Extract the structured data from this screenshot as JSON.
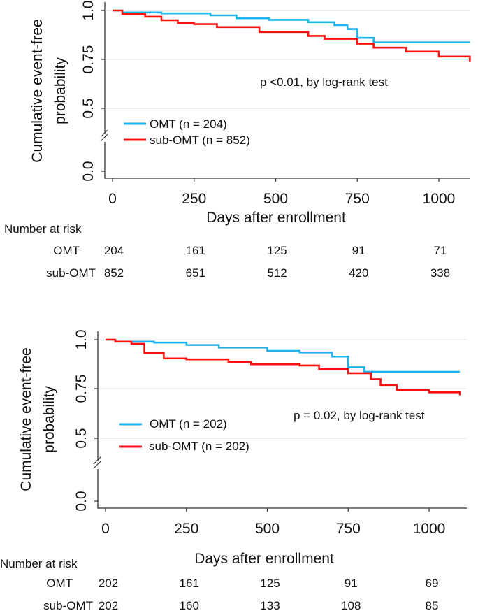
{
  "chart_data": [
    {
      "type": "line",
      "subtype": "kaplan-meier",
      "ylabel": [
        "Cumulative event-free",
        "probability"
      ],
      "xlabel": "Days after enrollment",
      "xticks": [
        0,
        250,
        500,
        750,
        1000
      ],
      "yticks": [
        "0.0",
        "0.5",
        "0.75",
        "1.0"
      ],
      "ylim": [
        0,
        1
      ],
      "grid": true,
      "annotation": "p <0.01, by log-rank test",
      "legend": [
        "OMT (n = 204)",
        "sub-OMT (n = 852)"
      ],
      "legend_position": "bottom-left",
      "series": [
        {
          "name": "OMT",
          "color": "#1fb4ec",
          "points": [
            [
              0,
              1
            ],
            [
              30,
              0.99
            ],
            [
              150,
              0.985
            ],
            [
              300,
              0.975
            ],
            [
              380,
              0.96
            ],
            [
              480,
              0.952
            ],
            [
              600,
              0.94
            ],
            [
              680,
              0.925
            ],
            [
              720,
              0.905
            ],
            [
              750,
              0.86
            ],
            [
              800,
              0.837
            ],
            [
              1095,
              0.837
            ]
          ]
        },
        {
          "name": "sub-OMT",
          "color": "#ff1010",
          "points": [
            [
              0,
              1
            ],
            [
              30,
              0.983
            ],
            [
              100,
              0.968
            ],
            [
              150,
              0.95
            ],
            [
              200,
              0.935
            ],
            [
              250,
              0.93
            ],
            [
              320,
              0.915
            ],
            [
              450,
              0.89
            ],
            [
              600,
              0.87
            ],
            [
              650,
              0.855
            ],
            [
              750,
              0.83
            ],
            [
              800,
              0.81
            ],
            [
              900,
              0.79
            ],
            [
              1000,
              0.765
            ],
            [
              1095,
              0.74
            ]
          ]
        }
      ],
      "risk_table": {
        "title": "Number at risk",
        "rows": [
          {
            "label": "OMT",
            "values": [
              204,
              161,
              125,
              91,
              71
            ]
          },
          {
            "label": "sub-OMT",
            "values": [
              852,
              651,
              512,
              420,
              338
            ]
          }
        ]
      }
    },
    {
      "type": "line",
      "subtype": "kaplan-meier",
      "ylabel": [
        "Cumulative event-free",
        "probability"
      ],
      "xlabel": "Days after enrollment",
      "xticks": [
        0,
        250,
        500,
        750,
        1000
      ],
      "yticks": [
        "0.0",
        "0.5",
        "0.75",
        "1.0"
      ],
      "ylim": [
        0,
        1
      ],
      "grid": true,
      "annotation": "p = 0.02, by log-rank test",
      "legend": [
        "OMT (n = 202)",
        "sub-OMT (n = 202)"
      ],
      "legend_position": "bottom-left",
      "series": [
        {
          "name": "OMT",
          "color": "#1fb4ec",
          "points": [
            [
              0,
              1
            ],
            [
              30,
              0.99
            ],
            [
              150,
              0.985
            ],
            [
              250,
              0.973
            ],
            [
              350,
              0.96
            ],
            [
              500,
              0.943
            ],
            [
              600,
              0.935
            ],
            [
              700,
              0.914
            ],
            [
              750,
              0.86
            ],
            [
              800,
              0.837
            ],
            [
              1095,
              0.837
            ]
          ]
        },
        {
          "name": "sub-OMT",
          "color": "#ff1010",
          "points": [
            [
              0,
              1
            ],
            [
              30,
              0.99
            ],
            [
              80,
              0.979
            ],
            [
              120,
              0.932
            ],
            [
              180,
              0.905
            ],
            [
              250,
              0.9
            ],
            [
              380,
              0.887
            ],
            [
              450,
              0.875
            ],
            [
              600,
              0.869
            ],
            [
              660,
              0.85
            ],
            [
              750,
              0.83
            ],
            [
              820,
              0.8
            ],
            [
              850,
              0.77
            ],
            [
              900,
              0.745
            ],
            [
              1000,
              0.733
            ],
            [
              1095,
              0.718
            ]
          ]
        }
      ],
      "risk_table": {
        "title": "Number at risk",
        "rows": [
          {
            "label": "OMT",
            "values": [
              202,
              161,
              125,
              91,
              69
            ]
          },
          {
            "label": "sub-OMT",
            "values": [
              202,
              160,
              133,
              108,
              85
            ]
          }
        ]
      }
    }
  ]
}
